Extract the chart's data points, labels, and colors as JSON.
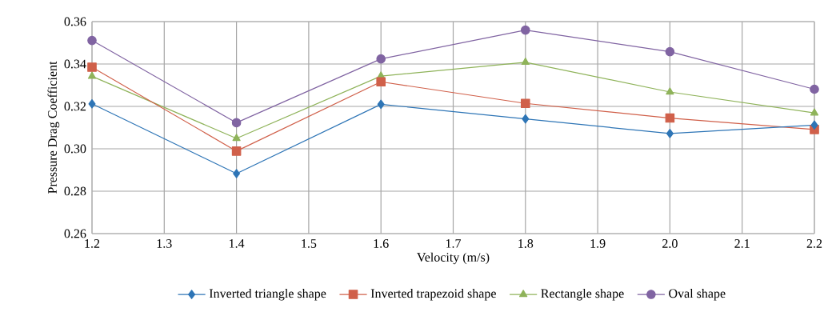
{
  "chart_data": {
    "type": "line",
    "xlabel": "Velocity (m/s)",
    "ylabel": "Pressure Drag Coefficient",
    "x": [
      1.2,
      1.4,
      1.6,
      1.8,
      2.0,
      2.2
    ],
    "series": [
      {
        "name": "Inverted triangle shape",
        "color": "#2e75b6",
        "marker": "diamond",
        "values": [
          0.3212,
          0.2883,
          0.321,
          0.3141,
          0.3072,
          0.3112
        ]
      },
      {
        "name": "Inverted trapezoid shape",
        "color": "#d0604a",
        "marker": "square",
        "values": [
          0.3385,
          0.2989,
          0.3316,
          0.3214,
          0.3145,
          0.3091
        ]
      },
      {
        "name": "Rectangle shape",
        "color": "#8fb35a",
        "marker": "triangle",
        "values": [
          0.3342,
          0.3049,
          0.3343,
          0.3408,
          0.3268,
          0.3169
        ]
      },
      {
        "name": "Oval shape",
        "color": "#8064a2",
        "marker": "circle",
        "values": [
          0.3511,
          0.3123,
          0.3424,
          0.356,
          0.3458,
          0.3281
        ]
      }
    ],
    "xlim": [
      1.2,
      2.2
    ],
    "xticks": [
      1.2,
      1.3,
      1.4,
      1.5,
      1.6,
      1.7,
      1.8,
      1.9,
      {
        "value": 2.0,
        "label": "2.0"
      },
      2.1,
      2.2
    ],
    "ylim": [
      0.26,
      0.36
    ],
    "yticks": [
      0.26,
      0.28,
      {
        "value": 0.3,
        "label": "0.30"
      },
      0.32,
      0.34,
      0.36
    ],
    "grid": true,
    "legend": "bottom",
    "line_style": "solid"
  }
}
